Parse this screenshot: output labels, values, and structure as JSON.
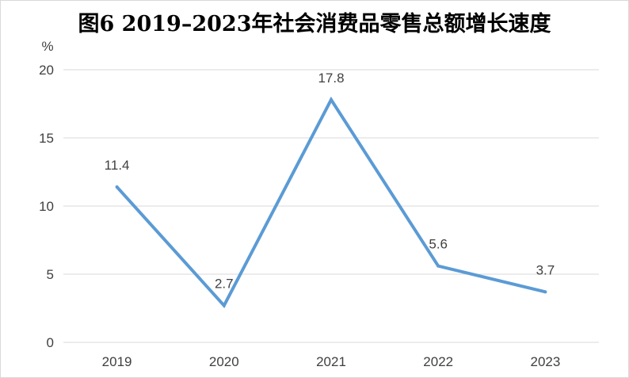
{
  "chart_data": {
    "type": "line",
    "title": "图6  2019–2023年社会消费品零售总额增长速度",
    "xlabel": "",
    "ylabel": "%",
    "categories": [
      "2019",
      "2020",
      "2021",
      "2022",
      "2023"
    ],
    "series": [
      {
        "values": [
          11.4,
          2.7,
          17.8,
          5.6,
          3.7
        ],
        "color": "#5b9bd5"
      }
    ],
    "data_labels": [
      "11.4",
      "2.7",
      "17.8",
      "5.6",
      "3.7"
    ],
    "y_ticks": [
      "0",
      "5",
      "10",
      "15",
      "20"
    ],
    "ylim": [
      0,
      20
    ],
    "grid": true,
    "gridline_color": "#d9d9d9",
    "legend": "none"
  }
}
